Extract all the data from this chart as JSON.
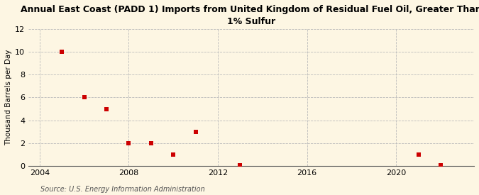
{
  "title": "Annual East Coast (PADD 1) Imports from United Kingdom of Residual Fuel Oil, Greater Than\n1% Sulfur",
  "ylabel": "Thousand Barrels per Day",
  "source": "Source: U.S. Energy Information Administration",
  "background_color": "#fdf6e3",
  "plot_background_color": "#fdf6e3",
  "marker_color": "#cc0000",
  "marker_size": 4,
  "xlim": [
    2003.5,
    2023.5
  ],
  "ylim": [
    0,
    12
  ],
  "xticks": [
    2004,
    2008,
    2012,
    2016,
    2020
  ],
  "yticks": [
    0,
    2,
    4,
    6,
    8,
    10,
    12
  ],
  "data_x": [
    2005,
    2006,
    2007,
    2008,
    2009,
    2010,
    2011,
    2013,
    2021,
    2022
  ],
  "data_y": [
    10,
    6,
    5,
    2,
    2,
    1,
    3,
    0.05,
    1,
    0.05
  ],
  "grid_color": "#bbbbbb",
  "title_fontsize": 9,
  "axis_fontsize": 7.5,
  "tick_fontsize": 8,
  "source_fontsize": 7
}
